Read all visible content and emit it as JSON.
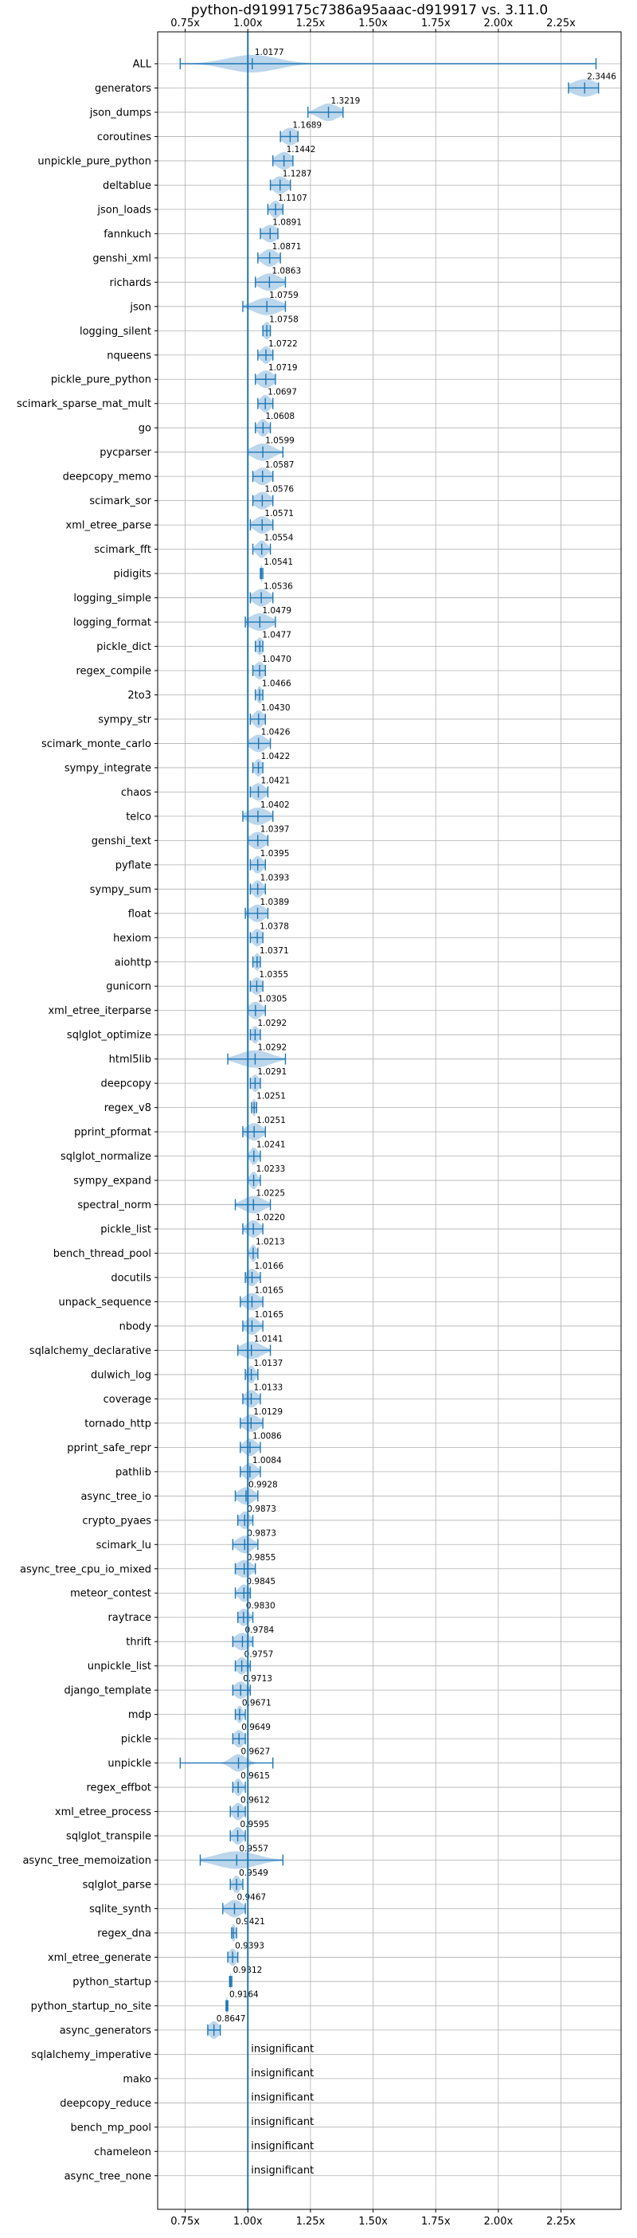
{
  "chart_data": {
    "type": "violin",
    "title": "python-d9199175c7386a95aaac-d919917 vs. 3.11.0",
    "xlabel": "",
    "ylabel": "",
    "xlim": [
      0.64,
      2.49
    ],
    "x_ticks": [
      0.75,
      1.0,
      1.25,
      1.5,
      1.75,
      2.0,
      2.25
    ],
    "x_tick_labels": [
      "0.75x",
      "1.00x",
      "1.25x",
      "1.50x",
      "1.75x",
      "2.00x",
      "2.25x"
    ],
    "reference_x": 1.0,
    "grid": true,
    "colors": {
      "violin": "#a6c8e6",
      "line": "#1f77b4",
      "reference": "#1f77b4",
      "grid": "#b0b0b0"
    },
    "benchmarks": [
      {
        "name": "ALL",
        "value": 1.0177,
        "label": "1.0177",
        "min": 0.73,
        "max": 2.39,
        "spread": 0.1
      },
      {
        "name": "generators",
        "value": 2.3446,
        "label": "2.3446",
        "min": 2.28,
        "max": 2.4,
        "spread": 0.05
      },
      {
        "name": "json_dumps",
        "value": 1.3219,
        "label": "1.3219",
        "min": 1.24,
        "max": 1.38,
        "spread": 0.04
      },
      {
        "name": "coroutines",
        "value": 1.1689,
        "label": "1.1689",
        "min": 1.13,
        "max": 1.2,
        "spread": 0.03
      },
      {
        "name": "unpickle_pure_python",
        "value": 1.1442,
        "label": "1.1442",
        "min": 1.1,
        "max": 1.18,
        "spread": 0.03
      },
      {
        "name": "deltablue",
        "value": 1.1287,
        "label": "1.1287",
        "min": 1.09,
        "max": 1.17,
        "spread": 0.03
      },
      {
        "name": "json_loads",
        "value": 1.1107,
        "label": "1.1107",
        "min": 1.08,
        "max": 1.14,
        "spread": 0.02
      },
      {
        "name": "fannkuch",
        "value": 1.0891,
        "label": "1.0891",
        "min": 1.05,
        "max": 1.12,
        "spread": 0.03
      },
      {
        "name": "genshi_xml",
        "value": 1.0871,
        "label": "1.0871",
        "min": 1.04,
        "max": 1.13,
        "spread": 0.03
      },
      {
        "name": "richards",
        "value": 1.0863,
        "label": "1.0863",
        "min": 1.03,
        "max": 1.15,
        "spread": 0.04
      },
      {
        "name": "json",
        "value": 1.0759,
        "label": "1.0759",
        "min": 0.98,
        "max": 1.15,
        "spread": 0.05
      },
      {
        "name": "logging_silent",
        "value": 1.0758,
        "label": "1.0758",
        "min": 1.06,
        "max": 1.09,
        "spread": 0.015
      },
      {
        "name": "nqueens",
        "value": 1.0722,
        "label": "1.0722",
        "min": 1.04,
        "max": 1.1,
        "spread": 0.02
      },
      {
        "name": "pickle_pure_python",
        "value": 1.0719,
        "label": "1.0719",
        "min": 1.03,
        "max": 1.11,
        "spread": 0.03
      },
      {
        "name": "scimark_sparse_mat_mult",
        "value": 1.0697,
        "label": "1.0697",
        "min": 1.04,
        "max": 1.1,
        "spread": 0.02
      },
      {
        "name": "go",
        "value": 1.0608,
        "label": "1.0608",
        "min": 1.03,
        "max": 1.09,
        "spread": 0.02
      },
      {
        "name": "pycparser",
        "value": 1.0599,
        "label": "1.0599",
        "min": 1.0,
        "max": 1.14,
        "spread": 0.04
      },
      {
        "name": "deepcopy_memo",
        "value": 1.0587,
        "label": "1.0587",
        "min": 1.02,
        "max": 1.1,
        "spread": 0.03
      },
      {
        "name": "scimark_sor",
        "value": 1.0576,
        "label": "1.0576",
        "min": 1.02,
        "max": 1.1,
        "spread": 0.03
      },
      {
        "name": "xml_etree_parse",
        "value": 1.0571,
        "label": "1.0571",
        "min": 1.01,
        "max": 1.1,
        "spread": 0.03
      },
      {
        "name": "scimark_fft",
        "value": 1.0554,
        "label": "1.0554",
        "min": 1.02,
        "max": 1.09,
        "spread": 0.02
      },
      {
        "name": "pidigits",
        "value": 1.0541,
        "label": "1.0541",
        "min": 1.05,
        "max": 1.06,
        "spread": 0.005
      },
      {
        "name": "logging_simple",
        "value": 1.0536,
        "label": "1.0536",
        "min": 1.01,
        "max": 1.1,
        "spread": 0.03
      },
      {
        "name": "logging_format",
        "value": 1.0479,
        "label": "1.0479",
        "min": 0.99,
        "max": 1.11,
        "spread": 0.04
      },
      {
        "name": "pickle_dict",
        "value": 1.0477,
        "label": "1.0477",
        "min": 1.03,
        "max": 1.06,
        "spread": 0.015
      },
      {
        "name": "regex_compile",
        "value": 1.047,
        "label": "1.0470",
        "min": 1.02,
        "max": 1.07,
        "spread": 0.02
      },
      {
        "name": "2to3",
        "value": 1.0466,
        "label": "1.0466",
        "min": 1.03,
        "max": 1.06,
        "spread": 0.01
      },
      {
        "name": "sympy_str",
        "value": 1.043,
        "label": "1.0430",
        "min": 1.01,
        "max": 1.07,
        "spread": 0.02
      },
      {
        "name": "scimark_monte_carlo",
        "value": 1.0426,
        "label": "1.0426",
        "min": 1.0,
        "max": 1.09,
        "spread": 0.03
      },
      {
        "name": "sympy_integrate",
        "value": 1.0422,
        "label": "1.0422",
        "min": 1.02,
        "max": 1.06,
        "spread": 0.015
      },
      {
        "name": "chaos",
        "value": 1.0421,
        "label": "1.0421",
        "min": 1.01,
        "max": 1.08,
        "spread": 0.025
      },
      {
        "name": "telco",
        "value": 1.0402,
        "label": "1.0402",
        "min": 0.98,
        "max": 1.1,
        "spread": 0.04
      },
      {
        "name": "genshi_text",
        "value": 1.0397,
        "label": "1.0397",
        "min": 1.0,
        "max": 1.08,
        "spread": 0.03
      },
      {
        "name": "pyflate",
        "value": 1.0395,
        "label": "1.0395",
        "min": 1.01,
        "max": 1.07,
        "spread": 0.02
      },
      {
        "name": "sympy_sum",
        "value": 1.0393,
        "label": "1.0393",
        "min": 1.01,
        "max": 1.07,
        "spread": 0.02
      },
      {
        "name": "float",
        "value": 1.0389,
        "label": "1.0389",
        "min": 0.99,
        "max": 1.08,
        "spread": 0.03
      },
      {
        "name": "hexiom",
        "value": 1.0378,
        "label": "1.0378",
        "min": 1.01,
        "max": 1.06,
        "spread": 0.02
      },
      {
        "name": "aiohttp",
        "value": 1.0371,
        "label": "1.0371",
        "min": 1.02,
        "max": 1.05,
        "spread": 0.012
      },
      {
        "name": "gunicorn",
        "value": 1.0355,
        "label": "1.0355",
        "min": 1.01,
        "max": 1.06,
        "spread": 0.02
      },
      {
        "name": "xml_etree_iterparse",
        "value": 1.0305,
        "label": "1.0305",
        "min": 1.0,
        "max": 1.07,
        "spread": 0.025
      },
      {
        "name": "sqlglot_optimize",
        "value": 1.0292,
        "label": "1.0292",
        "min": 1.01,
        "max": 1.05,
        "spread": 0.015
      },
      {
        "name": "html5lib",
        "value": 1.0292,
        "label": "1.0292",
        "min": 0.92,
        "max": 1.15,
        "spread": 0.06
      },
      {
        "name": "deepcopy",
        "value": 1.0291,
        "label": "1.0291",
        "min": 1.01,
        "max": 1.05,
        "spread": 0.015
      },
      {
        "name": "regex_v8",
        "value": 1.0251,
        "label": "1.0251",
        "min": 1.015,
        "max": 1.035,
        "spread": 0.008
      },
      {
        "name": "pprint_pformat",
        "value": 1.0251,
        "label": "1.0251",
        "min": 0.98,
        "max": 1.07,
        "spread": 0.03
      },
      {
        "name": "sqlglot_normalize",
        "value": 1.0241,
        "label": "1.0241",
        "min": 1.0,
        "max": 1.05,
        "spread": 0.015
      },
      {
        "name": "sympy_expand",
        "value": 1.0233,
        "label": "1.0233",
        "min": 1.0,
        "max": 1.05,
        "spread": 0.015
      },
      {
        "name": "spectral_norm",
        "value": 1.0225,
        "label": "1.0225",
        "min": 0.95,
        "max": 1.09,
        "spread": 0.04
      },
      {
        "name": "pickle_list",
        "value": 1.022,
        "label": "1.0220",
        "min": 0.98,
        "max": 1.06,
        "spread": 0.025
      },
      {
        "name": "bench_thread_pool",
        "value": 1.0213,
        "label": "1.0213",
        "min": 1.0,
        "max": 1.04,
        "spread": 0.012
      },
      {
        "name": "docutils",
        "value": 1.0166,
        "label": "1.0166",
        "min": 0.99,
        "max": 1.05,
        "spread": 0.02
      },
      {
        "name": "unpack_sequence",
        "value": 1.0165,
        "label": "1.0165",
        "min": 0.97,
        "max": 1.06,
        "spread": 0.03
      },
      {
        "name": "nbody",
        "value": 1.0165,
        "label": "1.0165",
        "min": 0.98,
        "max": 1.06,
        "spread": 0.025
      },
      {
        "name": "sqlalchemy_declarative",
        "value": 1.0141,
        "label": "1.0141",
        "min": 0.96,
        "max": 1.09,
        "spread": 0.04
      },
      {
        "name": "dulwich_log",
        "value": 1.0137,
        "label": "1.0137",
        "min": 0.99,
        "max": 1.04,
        "spread": 0.015
      },
      {
        "name": "coverage",
        "value": 1.0133,
        "label": "1.0133",
        "min": 0.98,
        "max": 1.05,
        "spread": 0.025
      },
      {
        "name": "tornado_http",
        "value": 1.0129,
        "label": "1.0129",
        "min": 0.97,
        "max": 1.06,
        "spread": 0.03
      },
      {
        "name": "pprint_safe_repr",
        "value": 1.0086,
        "label": "1.0086",
        "min": 0.97,
        "max": 1.05,
        "spread": 0.025
      },
      {
        "name": "pathlib",
        "value": 1.0084,
        "label": "1.0084",
        "min": 0.97,
        "max": 1.05,
        "spread": 0.025
      },
      {
        "name": "async_tree_io",
        "value": 0.9928,
        "label": "0.9928",
        "min": 0.95,
        "max": 1.04,
        "spread": 0.03
      },
      {
        "name": "crypto_pyaes",
        "value": 0.9873,
        "label": "0.9873",
        "min": 0.96,
        "max": 1.02,
        "spread": 0.02
      },
      {
        "name": "scimark_lu",
        "value": 0.9873,
        "label": "0.9873",
        "min": 0.94,
        "max": 1.04,
        "spread": 0.03
      },
      {
        "name": "async_tree_cpu_io_mixed",
        "value": 0.9855,
        "label": "0.9855",
        "min": 0.95,
        "max": 1.03,
        "spread": 0.03
      },
      {
        "name": "meteor_contest",
        "value": 0.9845,
        "label": "0.9845",
        "min": 0.95,
        "max": 1.01,
        "spread": 0.02
      },
      {
        "name": "raytrace",
        "value": 0.983,
        "label": "0.9830",
        "min": 0.96,
        "max": 1.02,
        "spread": 0.02
      },
      {
        "name": "thrift",
        "value": 0.9784,
        "label": "0.9784",
        "min": 0.94,
        "max": 1.02,
        "spread": 0.03
      },
      {
        "name": "unpickle_list",
        "value": 0.9757,
        "label": "0.9757",
        "min": 0.95,
        "max": 1.01,
        "spread": 0.02
      },
      {
        "name": "django_template",
        "value": 0.9713,
        "label": "0.9713",
        "min": 0.94,
        "max": 1.01,
        "spread": 0.025
      },
      {
        "name": "mdp",
        "value": 0.9671,
        "label": "0.9671",
        "min": 0.95,
        "max": 0.99,
        "spread": 0.012
      },
      {
        "name": "pickle",
        "value": 0.9649,
        "label": "0.9649",
        "min": 0.94,
        "max": 0.99,
        "spread": 0.02
      },
      {
        "name": "unpickle",
        "value": 0.9627,
        "label": "0.9627",
        "min": 0.73,
        "max": 1.1,
        "spread": 0.03
      },
      {
        "name": "regex_effbot",
        "value": 0.9615,
        "label": "0.9615",
        "min": 0.94,
        "max": 0.99,
        "spread": 0.015
      },
      {
        "name": "xml_etree_process",
        "value": 0.9612,
        "label": "0.9612",
        "min": 0.93,
        "max": 0.99,
        "spread": 0.02
      },
      {
        "name": "sqlglot_transpile",
        "value": 0.9595,
        "label": "0.9595",
        "min": 0.93,
        "max": 0.99,
        "spread": 0.02
      },
      {
        "name": "async_tree_memoization",
        "value": 0.9557,
        "label": "0.9557",
        "min": 0.81,
        "max": 1.14,
        "spread": 0.08
      },
      {
        "name": "sqlglot_parse",
        "value": 0.9549,
        "label": "0.9549",
        "min": 0.93,
        "max": 0.98,
        "spread": 0.015
      },
      {
        "name": "sqlite_synth",
        "value": 0.9467,
        "label": "0.9467",
        "min": 0.9,
        "max": 0.99,
        "spread": 0.03
      },
      {
        "name": "regex_dna",
        "value": 0.9421,
        "label": "0.9421",
        "min": 0.935,
        "max": 0.955,
        "spread": 0.008
      },
      {
        "name": "xml_etree_generate",
        "value": 0.9393,
        "label": "0.9393",
        "min": 0.92,
        "max": 0.96,
        "spread": 0.015
      },
      {
        "name": "python_startup",
        "value": 0.9312,
        "label": "0.9312",
        "min": 0.927,
        "max": 0.936,
        "spread": 0.003
      },
      {
        "name": "python_startup_no_site",
        "value": 0.9164,
        "label": "0.9164",
        "min": 0.913,
        "max": 0.92,
        "spread": 0.003
      },
      {
        "name": "async_generators",
        "value": 0.8647,
        "label": "0.8647",
        "min": 0.84,
        "max": 0.89,
        "spread": 0.02
      },
      {
        "name": "sqlalchemy_imperative",
        "value": null,
        "label": "insignificant"
      },
      {
        "name": "mako",
        "value": null,
        "label": "insignificant"
      },
      {
        "name": "deepcopy_reduce",
        "value": null,
        "label": "insignificant"
      },
      {
        "name": "bench_mp_pool",
        "value": null,
        "label": "insignificant"
      },
      {
        "name": "chameleon",
        "value": null,
        "label": "insignificant"
      },
      {
        "name": "async_tree_none",
        "value": null,
        "label": "insignificant"
      }
    ]
  }
}
